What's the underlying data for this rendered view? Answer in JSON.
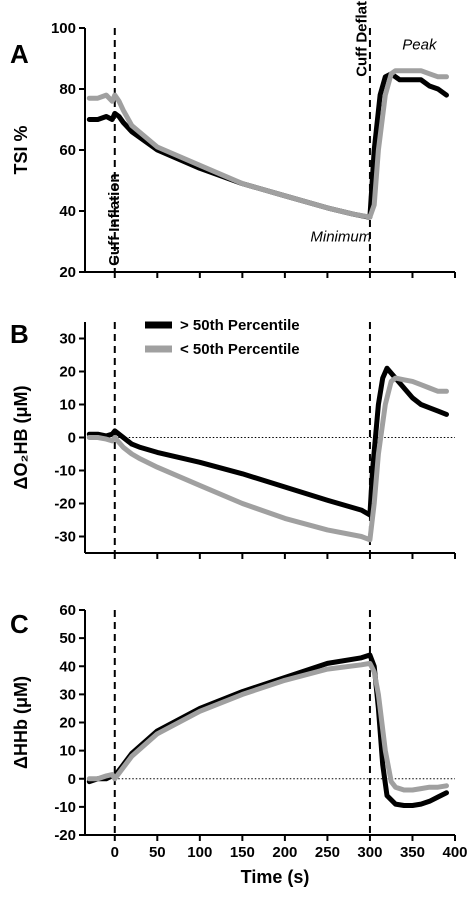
{
  "chart_data": {
    "type": "line",
    "xlabel": "Time (s)",
    "xlim": [
      -35,
      400
    ],
    "xticks": [
      0,
      50,
      100,
      150,
      200,
      250,
      300,
      350,
      400
    ],
    "colors": {
      "above": "#000000",
      "below": "#a0a0a0"
    },
    "legend": {
      "placement": "top-left of panel B",
      "entries": [
        {
          "label": "> 50th Percentile",
          "color": "#000000"
        },
        {
          "label": "< 50th Percentile",
          "color": "#a0a0a0"
        }
      ]
    },
    "panels": [
      {
        "letter": "A",
        "ylabel": "TSI %",
        "ylim": [
          20,
          100
        ],
        "yticks": [
          20,
          40,
          60,
          80,
          100
        ],
        "zero_line": false,
        "vlines": [
          0,
          300
        ],
        "annotations": [
          {
            "text": "Cuff Inflation",
            "x": 5,
            "y": 22,
            "rotation": -90,
            "style": "bold"
          },
          {
            "text": "Cuff Deflation",
            "x": 296,
            "y": 84,
            "rotation": -90,
            "style": "bold"
          },
          {
            "text": "Minimum",
            "x": 230,
            "y": 30,
            "rotation": 0,
            "style": "italic"
          },
          {
            "text": "Peak",
            "x": 338,
            "y": 93,
            "rotation": 0,
            "style": "italic"
          }
        ],
        "series": [
          {
            "name": "> 50th Percentile",
            "color": "#000000",
            "x": [
              -30,
              -20,
              -10,
              -3,
              0,
              5,
              10,
              20,
              50,
              100,
              150,
              200,
              250,
              280,
              298,
              300,
              305,
              312,
              318,
              325,
              335,
              350,
              360,
              370,
              380,
              390
            ],
            "y": [
              70,
              70,
              71,
              70,
              72,
              71,
              69,
              66,
              60,
              54,
              49,
              45,
              41,
              39,
              38,
              38,
              60,
              78,
              84,
              85,
              83,
              83,
              83,
              81,
              80,
              78
            ]
          },
          {
            "name": "< 50th Percentile",
            "color": "#a0a0a0",
            "x": [
              -30,
              -20,
              -10,
              -3,
              0,
              5,
              10,
              20,
              50,
              100,
              150,
              200,
              250,
              280,
              300,
              305,
              310,
              318,
              325,
              330,
              340,
              350,
              360,
              370,
              380,
              390
            ],
            "y": [
              77,
              77,
              78,
              76,
              78,
              76,
              73,
              68,
              61,
              55,
              49,
              45,
              41,
              39,
              38,
              42,
              60,
              78,
              85,
              86,
              86,
              86,
              86,
              85,
              84,
              84
            ]
          }
        ]
      },
      {
        "letter": "B",
        "ylabel": "ΔO₂HB (μM)",
        "ylim": [
          -35,
          35
        ],
        "yticks": [
          -30,
          -20,
          -10,
          0,
          10,
          20,
          30
        ],
        "zero_line": true,
        "vlines": [
          0,
          300
        ],
        "annotations": [],
        "series": [
          {
            "name": "> 50th Percentile",
            "color": "#000000",
            "x": [
              -30,
              -20,
              -10,
              -3,
              0,
              10,
              20,
              30,
              50,
              100,
              150,
              200,
              250,
              290,
              300,
              303,
              310,
              315,
              320,
              330,
              340,
              350,
              360,
              370,
              380,
              390
            ],
            "y": [
              1,
              1,
              0.5,
              1,
              2,
              0,
              -2,
              -3,
              -4.5,
              -7.5,
              -11,
              -15,
              -19,
              -22,
              -23.5,
              -10,
              10,
              18,
              21,
              18,
              15,
              12,
              10,
              9,
              8,
              7
            ]
          },
          {
            "name": "< 50th Percentile",
            "color": "#a0a0a0",
            "x": [
              -30,
              -20,
              -10,
              -3,
              0,
              10,
              20,
              30,
              50,
              100,
              150,
              200,
              250,
              290,
              300,
              305,
              310,
              318,
              325,
              330,
              340,
              350,
              360,
              370,
              380,
              390
            ],
            "y": [
              0,
              0,
              -0.5,
              -1,
              0,
              -3,
              -5,
              -6.5,
              -9,
              -14.5,
              -20,
              -24.5,
              -28,
              -30,
              -31,
              -20,
              -5,
              10,
              17,
              18,
              17.5,
              17,
              16,
              15,
              14,
              14
            ]
          }
        ]
      },
      {
        "letter": "C",
        "ylabel": "ΔHHb (μM)",
        "ylim": [
          -20,
          60
        ],
        "yticks": [
          -20,
          -10,
          0,
          10,
          20,
          30,
          40,
          50,
          60
        ],
        "zero_line": true,
        "vlines": [
          0,
          300
        ],
        "annotations": [],
        "series": [
          {
            "name": "> 50th Percentile",
            "color": "#000000",
            "x": [
              -30,
              -20,
              -10,
              -3,
              0,
              10,
              20,
              50,
              100,
              150,
              200,
              250,
              290,
              300,
              305,
              310,
              315,
              320,
              330,
              340,
              350,
              360,
              370,
              380,
              390
            ],
            "y": [
              -1,
              0,
              0,
              1,
              1,
              5,
              9,
              17,
              25,
              31,
              36,
              41,
              43,
              44,
              40,
              25,
              5,
              -6,
              -9,
              -9.5,
              -9.5,
              -9,
              -8,
              -6.5,
              -5
            ]
          },
          {
            "name": "< 50th Percentile",
            "color": "#a0a0a0",
            "x": [
              -30,
              -20,
              -10,
              -3,
              0,
              10,
              20,
              50,
              100,
              150,
              200,
              250,
              290,
              300,
              305,
              310,
              318,
              325,
              330,
              340,
              350,
              360,
              370,
              380,
              390
            ],
            "y": [
              0,
              0,
              1,
              1.5,
              0,
              4,
              8,
              16,
              24,
              30,
              35,
              39,
              40.5,
              41,
              38,
              30,
              10,
              -1,
              -3,
              -4,
              -4,
              -3.5,
              -3,
              -3,
              -2.5
            ]
          }
        ]
      }
    ]
  }
}
